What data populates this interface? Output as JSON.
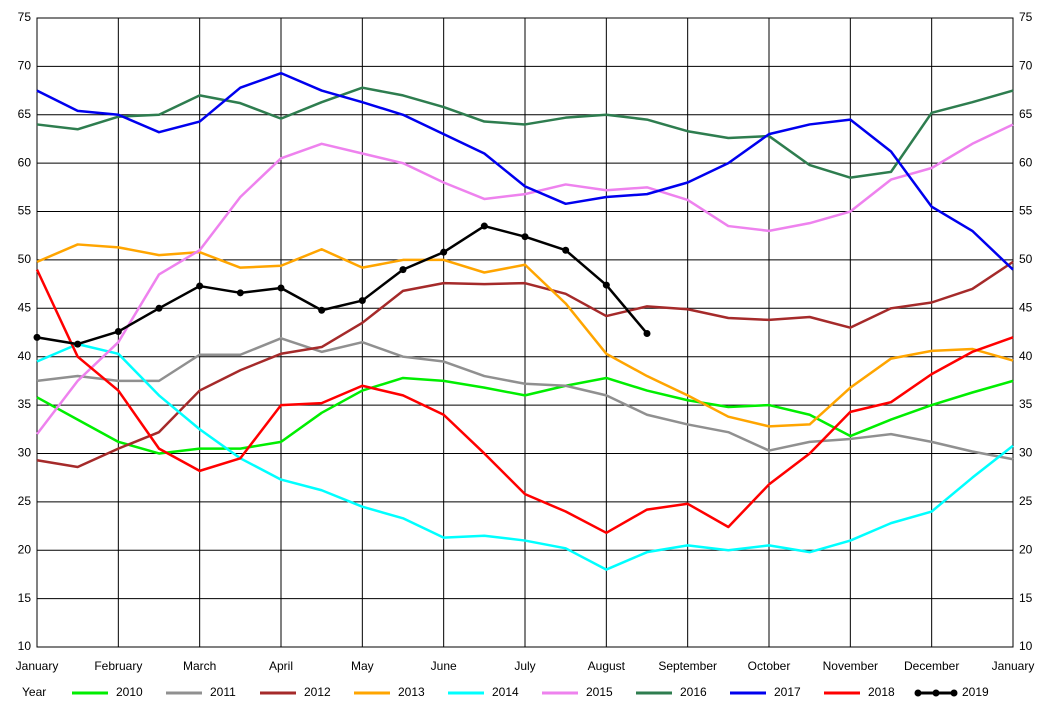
{
  "chart_data": {
    "type": "line",
    "legend_title": "Year",
    "x": [
      0,
      0.5,
      1,
      1.5,
      2,
      2.5,
      3,
      3.5,
      4,
      4.5,
      5,
      5.5,
      6,
      6.5,
      7,
      7.5,
      8,
      8.5,
      9,
      9.5,
      10,
      10.5,
      11,
      11.5,
      12
    ],
    "xlim": [
      0,
      12
    ],
    "xticks": [
      {
        "value": 0,
        "label": "January"
      },
      {
        "value": 1,
        "label": "February"
      },
      {
        "value": 2,
        "label": "March"
      },
      {
        "value": 3,
        "label": "April"
      },
      {
        "value": 4,
        "label": "May"
      },
      {
        "value": 5,
        "label": "June"
      },
      {
        "value": 6,
        "label": "July"
      },
      {
        "value": 7,
        "label": "August"
      },
      {
        "value": 8,
        "label": "September"
      },
      {
        "value": 9,
        "label": "October"
      },
      {
        "value": 10,
        "label": "November"
      },
      {
        "value": 11,
        "label": "December"
      },
      {
        "value": 12,
        "label": "January"
      }
    ],
    "ylim": [
      10,
      75
    ],
    "yticks": [
      10,
      15,
      20,
      25,
      30,
      35,
      40,
      45,
      50,
      55,
      60,
      65,
      70,
      75
    ],
    "y2lim": [
      10,
      75
    ],
    "y2ticks": [
      10,
      15,
      20,
      25,
      30,
      35,
      40,
      45,
      50,
      55,
      60,
      65,
      70,
      75
    ],
    "grid": true,
    "legend": "bottom",
    "series": [
      {
        "name": "2010",
        "color": "#00ee00",
        "values": [
          35.8,
          33.5,
          31.2,
          30,
          30.5,
          30.5,
          31.2,
          34.2,
          36.5,
          37.8,
          37.5,
          36.8,
          36,
          37,
          37.8,
          36.5,
          35.5,
          34.8,
          35,
          34,
          31.8,
          33.5,
          35,
          36.3,
          37.5
        ]
      },
      {
        "name": "2011",
        "color": "#909090",
        "values": [
          37.5,
          38,
          37.5,
          37.5,
          40.2,
          40.2,
          41.9,
          40.5,
          41.5,
          40,
          39.5,
          38,
          37.2,
          37,
          36,
          34,
          33,
          32.2,
          30.3,
          31.2,
          31.5,
          32,
          31.2,
          30.2,
          29.4
        ]
      },
      {
        "name": "2012",
        "color": "#a52a2a",
        "values": [
          29.3,
          28.6,
          30.5,
          32.2,
          36.5,
          38.6,
          40.3,
          41,
          43.5,
          46.8,
          47.6,
          47.5,
          47.6,
          46.5,
          44.2,
          45.2,
          44.9,
          44,
          43.8,
          44.1,
          43,
          45,
          45.6,
          47,
          49.8
        ]
      },
      {
        "name": "2013",
        "color": "#ffa500",
        "values": [
          49.8,
          51.6,
          51.3,
          50.5,
          50.8,
          49.2,
          49.4,
          51.1,
          49.2,
          50,
          50,
          48.7,
          49.5,
          45.5,
          40.3,
          38,
          36,
          33.8,
          32.8,
          33,
          36.8,
          39.8,
          40.6,
          40.8,
          39.6
        ]
      },
      {
        "name": "2014",
        "color": "#00ffff",
        "values": [
          39.5,
          41.3,
          40.3,
          36,
          32.5,
          29.5,
          27.3,
          26.2,
          24.5,
          23.3,
          21.3,
          21.5,
          21,
          20.2,
          18,
          19.8,
          20.5,
          20,
          20.5,
          19.8,
          21,
          22.8,
          24,
          27.5,
          30.8
        ]
      },
      {
        "name": "2015",
        "color": "#ee82ee",
        "values": [
          32,
          37.5,
          41.5,
          48.5,
          51,
          56.5,
          60.5,
          62,
          61,
          60,
          58,
          56.3,
          56.8,
          57.8,
          57.2,
          57.5,
          56.2,
          53.5,
          53,
          53.8,
          55,
          58.3,
          59.5,
          62,
          64
        ]
      },
      {
        "name": "2016",
        "color": "#2e7d4f",
        "values": [
          64,
          63.5,
          64.8,
          65,
          67,
          66.2,
          64.6,
          66.3,
          67.8,
          67,
          65.8,
          64.3,
          64,
          64.7,
          65,
          64.5,
          63.3,
          62.6,
          62.8,
          59.8,
          58.5,
          59.1,
          65.2,
          66.3,
          67.5
        ]
      },
      {
        "name": "2017",
        "color": "#0000ee",
        "values": [
          67.5,
          65.4,
          65,
          63.2,
          64.3,
          67.8,
          69.3,
          67.5,
          66.3,
          65,
          63,
          61,
          57.6,
          55.8,
          56.5,
          56.8,
          58,
          60,
          63,
          64,
          64.5,
          61.2,
          55.5,
          53,
          49
        ]
      },
      {
        "name": "2018",
        "color": "#ff0000",
        "values": [
          49,
          40,
          36.5,
          30.5,
          28.2,
          29.5,
          35,
          35.2,
          37,
          36,
          34,
          30,
          25.8,
          24,
          21.8,
          24.2,
          24.8,
          22.4,
          26.8,
          30,
          34.3,
          35.3,
          38.2,
          40.5,
          42
        ]
      },
      {
        "name": "2019",
        "color": "#000000",
        "markers": true,
        "values": [
          42,
          41.3,
          42.6,
          45,
          47.3,
          46.6,
          47.1,
          44.8,
          45.8,
          49,
          50.8,
          53.5,
          52.4,
          51,
          47.4,
          42.4,
          null,
          null,
          null,
          null,
          null,
          null,
          null,
          null,
          null
        ]
      }
    ]
  }
}
